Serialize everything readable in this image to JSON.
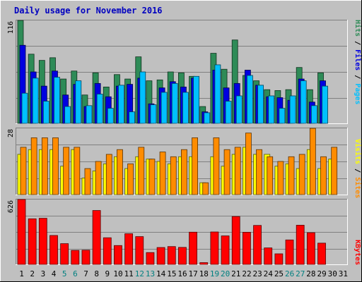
{
  "title": "Daily usage for November 2016",
  "colors": {
    "background": "#c0c0c0",
    "title": "#0000c0",
    "hits": "#2e8b57",
    "files": "#0000e0",
    "pages": "#00c0ff",
    "visits": "#ffff00",
    "sites": "#ff8c00",
    "kbytes": "#ff0000",
    "weekend_label": "#008080",
    "weekday_label": "#000000"
  },
  "chart_data": [
    {
      "type": "bar",
      "panel": "hits-files-pages",
      "ymax_label": "116",
      "ylim": [
        0,
        116
      ],
      "categories": [
        "1",
        "2",
        "3",
        "4",
        "5",
        "6",
        "7",
        "8",
        "9",
        "10",
        "11",
        "12",
        "13",
        "14",
        "15",
        "16",
        "17",
        "18",
        "19",
        "20",
        "21",
        "22",
        "23",
        "24",
        "25",
        "26",
        "27",
        "28",
        "29",
        "30",
        "31"
      ],
      "weekend_days": [
        "5",
        "6",
        "12",
        "13",
        "19",
        "20",
        "26",
        "27"
      ],
      "legend": [
        "Pages",
        "Files",
        "Hits"
      ],
      "series": [
        {
          "name": "Hits",
          "values": [
            116,
            78,
            71,
            74,
            50,
            59,
            32,
            57,
            41,
            55,
            50,
            75,
            48,
            49,
            58,
            57,
            53,
            19,
            79,
            61,
            94,
            54,
            48,
            38,
            37,
            38,
            63,
            38,
            57,
            0,
            0
          ]
        },
        {
          "name": "Files",
          "values": [
            88,
            58,
            42,
            59,
            32,
            44,
            19,
            45,
            30,
            42,
            44,
            51,
            22,
            40,
            47,
            41,
            51,
            13,
            60,
            40,
            45,
            60,
            43,
            30,
            29,
            26,
            50,
            24,
            48,
            0,
            0
          ]
        },
        {
          "name": "Pages",
          "values": [
            34,
            51,
            25,
            52,
            19,
            48,
            20,
            33,
            17,
            43,
            13,
            58,
            21,
            35,
            45,
            35,
            53,
            12,
            66,
            25,
            31,
            54,
            43,
            31,
            17,
            31,
            48,
            20,
            42,
            0,
            0
          ]
        }
      ]
    },
    {
      "type": "bar",
      "panel": "visits-sites",
      "ymax_label": "28",
      "ylim": [
        0,
        28
      ],
      "categories": [
        "1",
        "2",
        "3",
        "4",
        "5",
        "6",
        "7",
        "8",
        "9",
        "10",
        "11",
        "12",
        "13",
        "14",
        "15",
        "16",
        "17",
        "18",
        "19",
        "20",
        "21",
        "22",
        "23",
        "24",
        "25",
        "26",
        "27",
        "28",
        "29",
        "30",
        "31"
      ],
      "legend": [
        "Sites",
        "Visits"
      ],
      "series": [
        {
          "name": "Visits",
          "values": [
            17,
            19,
            19,
            19,
            12,
            19,
            7,
            10,
            13,
            16,
            11,
            16,
            15,
            14,
            13,
            16,
            16,
            5,
            16,
            12,
            17,
            20,
            17,
            17,
            12,
            13,
            11,
            19,
            11,
            15,
            0
          ]
        },
        {
          "name": "Sites",
          "values": [
            20,
            24,
            24,
            24,
            20,
            20,
            11,
            14,
            17,
            19,
            13,
            20,
            15,
            18,
            16,
            19,
            24,
            5,
            24,
            19,
            20,
            26,
            19,
            16,
            14,
            16,
            17,
            28,
            16,
            20,
            0
          ]
        }
      ]
    },
    {
      "type": "bar",
      "panel": "kbytes",
      "ymax_label": "626",
      "ylim": [
        0,
        626
      ],
      "categories": [
        "1",
        "2",
        "3",
        "4",
        "5",
        "6",
        "7",
        "8",
        "9",
        "10",
        "11",
        "12",
        "13",
        "14",
        "15",
        "16",
        "17",
        "18",
        "19",
        "20",
        "21",
        "22",
        "23",
        "24",
        "25",
        "26",
        "27",
        "28",
        "29",
        "30",
        "31"
      ],
      "legend": [
        "KBytes"
      ],
      "series": [
        {
          "name": "KBytes",
          "values": [
            626,
            440,
            445,
            279,
            200,
            135,
            137,
            520,
            257,
            182,
            296,
            268,
            114,
            163,
            172,
            164,
            311,
            17,
            313,
            275,
            462,
            310,
            376,
            159,
            102,
            236,
            378,
            306,
            205,
            0,
            0
          ]
        }
      ]
    }
  ]
}
